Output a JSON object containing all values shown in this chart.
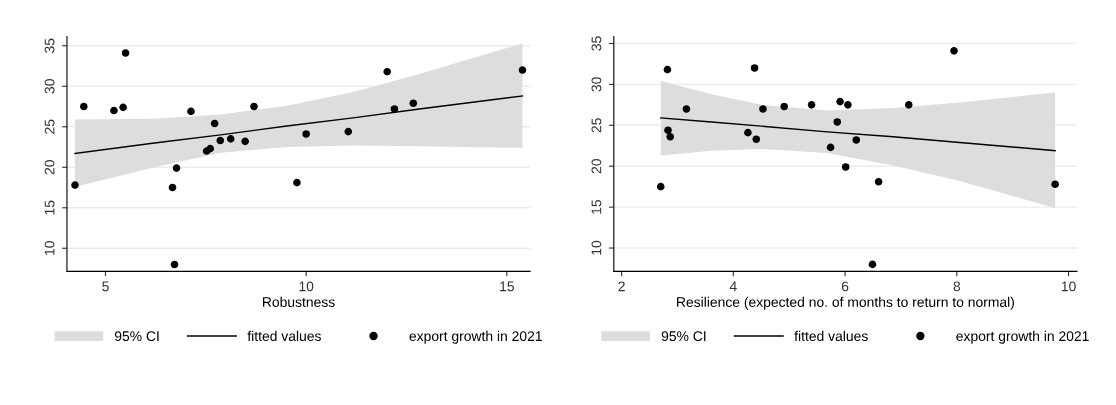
{
  "chart_data": [
    {
      "type": "scatter",
      "xlabel": "Robustness",
      "xlim": [
        4.04,
        15.58
      ],
      "xticks": [
        5,
        10,
        15
      ],
      "ylim": [
        7.15,
        36.15
      ],
      "yticks": [
        10,
        15,
        20,
        25,
        30,
        35
      ],
      "grid": "y",
      "legend": "bottom",
      "annotations": [
        "95% CI"
      ],
      "series": [
        {
          "name": "fitted values",
          "type": "line",
          "color": "#000000",
          "line_style": "solid",
          "marker": "none",
          "x": [
            4.24,
            6.22,
            7.87,
            9.52,
            11.17,
            12.82,
            15.39
          ],
          "values": [
            21.7,
            23.0,
            24.0,
            25.1,
            26.1,
            27.2,
            28.8
          ],
          "lower": [
            17.6,
            20.0,
            21.8,
            22.5,
            22.7,
            22.6,
            22.4
          ],
          "upper": [
            25.9,
            26.0,
            26.5,
            27.6,
            29.3,
            31.5,
            35.3
          ]
        },
        {
          "name": "export growth in 2021",
          "marker": "circle",
          "color": "#000000",
          "x": [
            4.24,
            4.46,
            5.21,
            5.44,
            5.5,
            6.67,
            6.72,
            6.77,
            7.13,
            7.52,
            7.61,
            7.72,
            7.86,
            8.12,
            8.48,
            8.7,
            9.77,
            10.0,
            11.05,
            12.02,
            12.2,
            12.67,
            15.39
          ],
          "values": [
            17.8,
            27.5,
            27.0,
            27.4,
            34.1,
            17.5,
            8.0,
            19.9,
            26.9,
            22.0,
            22.3,
            25.4,
            23.3,
            23.5,
            23.2,
            27.5,
            18.1,
            24.1,
            24.4,
            31.8,
            27.2,
            27.9,
            32.0
          ]
        }
      ]
    },
    {
      "type": "scatter",
      "xlabel": "Resilience (expected no. of months to return to normal)",
      "xlim": [
        1.86,
        10.15
      ],
      "xticks": [
        2,
        4,
        6,
        8,
        10
      ],
      "ylim": [
        7.15,
        35.86
      ],
      "yticks": [
        10,
        15,
        20,
        25,
        30,
        35
      ],
      "grid": "y",
      "legend": "bottom",
      "annotations": [
        "95% CI"
      ],
      "series": [
        {
          "name": "fitted values",
          "type": "line",
          "color": "#000000",
          "line_style": "solid",
          "marker": "none",
          "x": [
            2.7,
            3.61,
            4.5,
            5.68,
            6.86,
            8.05,
            9.76
          ],
          "values": [
            25.9,
            25.4,
            24.9,
            24.2,
            23.6,
            22.9,
            21.9
          ],
          "lower": [
            21.3,
            21.9,
            22.1,
            21.6,
            20.1,
            18.2,
            14.9
          ],
          "upper": [
            30.4,
            28.8,
            27.5,
            26.8,
            27.1,
            27.8,
            29.0
          ]
        },
        {
          "name": "export growth in 2021",
          "marker": "circle",
          "color": "#000000",
          "x": [
            2.7,
            2.82,
            2.83,
            2.87,
            3.16,
            4.26,
            4.38,
            4.41,
            4.53,
            4.91,
            5.4,
            5.74,
            5.86,
            5.91,
            6.01,
            6.05,
            6.2,
            6.49,
            6.6,
            7.14,
            7.95,
            9.76
          ],
          "values": [
            17.5,
            31.8,
            24.4,
            23.6,
            27.0,
            24.1,
            32.0,
            23.3,
            27.0,
            27.3,
            27.5,
            22.3,
            25.4,
            27.9,
            19.9,
            27.5,
            23.2,
            8.0,
            18.1,
            27.5,
            34.1,
            17.8
          ]
        }
      ]
    }
  ]
}
